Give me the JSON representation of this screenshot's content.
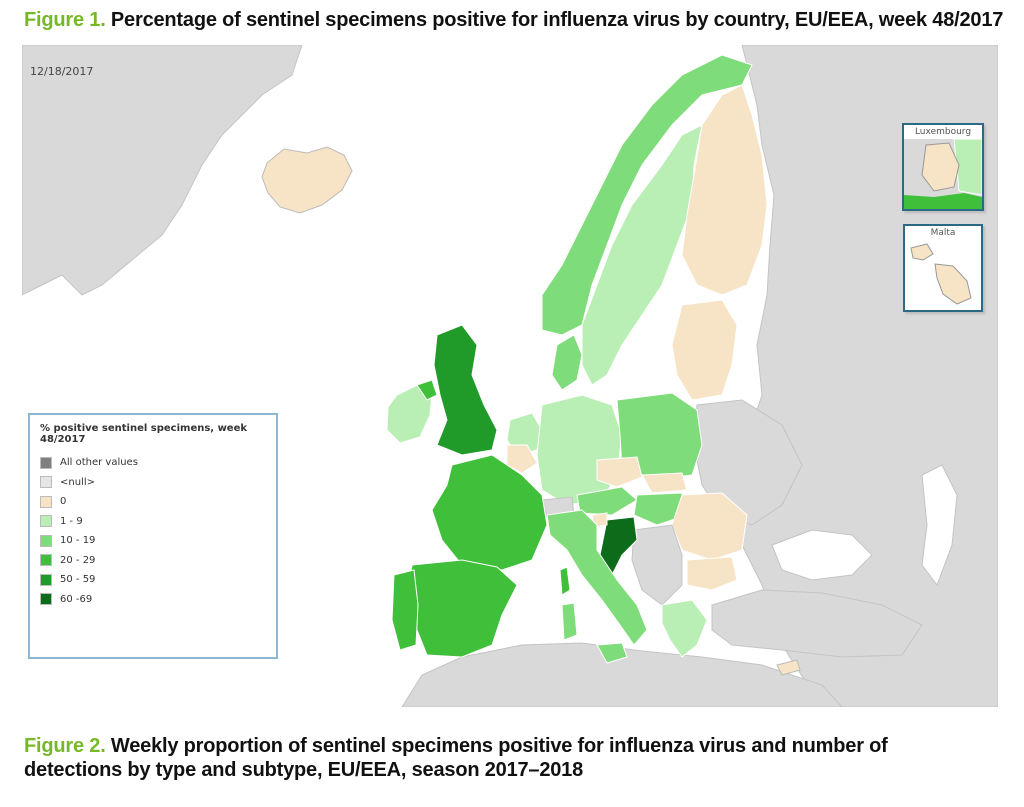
{
  "figure1": {
    "number": "Figure 1.",
    "title": "Percentage of sentinel specimens positive for influenza virus by country, EU/EEA, week 48/2017"
  },
  "figure2": {
    "number": "Figure 2.",
    "title_line1": "Weekly proportion of sentinel specimens positive for influenza virus and number of",
    "title_line2": "detections by type and subtype, EU/EEA, season 2017–2018"
  },
  "map": {
    "date": "12/18/2017",
    "legend": {
      "title": "% positive sentinel specimens, week 48/2017",
      "items": [
        {
          "label": "All other values",
          "color": "#7f7f7f"
        },
        {
          "label": "<null>",
          "color": "#e6e6e6"
        },
        {
          "label": "0",
          "color": "#f7e3c5"
        },
        {
          "label": "1 - 9",
          "color": "#b9efb4"
        },
        {
          "label": "10 - 19",
          "color": "#7fdc7a"
        },
        {
          "label": "20 - 29",
          "color": "#3fbf3a"
        },
        {
          "label": "50 - 59",
          "color": "#209b2a"
        },
        {
          "label": "60 -69",
          "color": "#0c6c19"
        }
      ]
    },
    "insets": {
      "luxembourg": "Luxembourg",
      "malta": "Malta"
    }
  }
}
